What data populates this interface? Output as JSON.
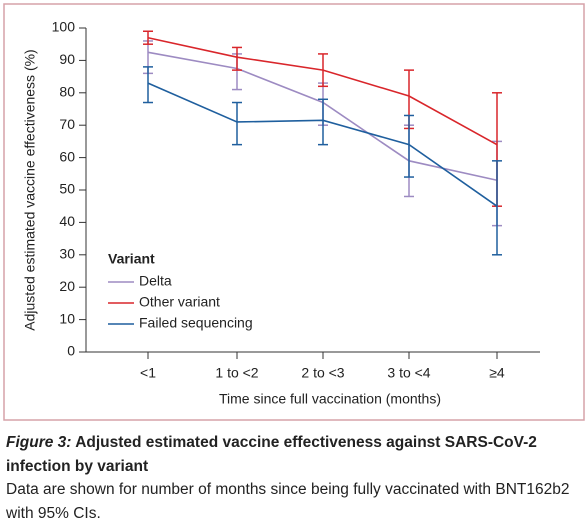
{
  "chart_data": {
    "type": "line",
    "ylabel": "Adjusted estimated vaccine effectiveness (%)",
    "xlabel": "Time since full vaccination (months)",
    "categories": [
      "<1",
      "1 to <2",
      "2 to <3",
      "3 to <4",
      "≥4"
    ],
    "ylim": [
      0,
      100
    ],
    "yticks": [
      0,
      10,
      20,
      30,
      40,
      50,
      60,
      70,
      80,
      90,
      100
    ],
    "legend_title": "Variant",
    "legend": "lower-left",
    "series": [
      {
        "name": "Delta",
        "color": "#9d8bc2",
        "values": [
          92.5,
          87.5,
          77,
          59,
          53
        ],
        "ci_low": [
          86,
          81,
          70,
          48,
          39
        ],
        "ci_high": [
          96,
          92,
          83,
          70,
          65
        ]
      },
      {
        "name": "Other variant",
        "color": "#d9262b",
        "values": [
          97,
          91,
          87,
          79,
          64
        ],
        "ci_low": [
          95,
          87,
          82,
          69,
          45
        ],
        "ci_high": [
          99,
          94,
          92,
          87,
          80
        ]
      },
      {
        "name": "Failed sequencing",
        "color": "#1f5f9e",
        "values": [
          83,
          71,
          71.5,
          64,
          45
        ],
        "ci_low": [
          77,
          64,
          64,
          54,
          30
        ],
        "ci_high": [
          88,
          77,
          78,
          73,
          59
        ]
      }
    ]
  },
  "caption": {
    "label": "Figure 3:",
    "title": "Adjusted estimated vaccine effectiveness against SARS-CoV-2 infection by variant",
    "text": "Data are shown for number of months since being fully vaccinated with BNT162b2 with 95% CIs."
  }
}
